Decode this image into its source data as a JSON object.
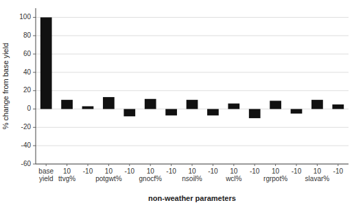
{
  "chart_data": {
    "type": "bar",
    "categories": [
      "base\nyield",
      "10\nttvg%",
      "-10",
      "10\npotgwt%",
      "-10",
      "10\ngnocf%",
      "-10",
      "10\nnsoil%",
      "-10",
      "10\nwcl%",
      "-10",
      "10\nrgrpot%",
      "-10",
      "10\nslavar%",
      "-10"
    ],
    "values": [
      100,
      10,
      3,
      13,
      -8,
      11,
      -7,
      10,
      -7,
      6,
      -10,
      9,
      -5,
      10,
      5
    ],
    "color": "#111111",
    "xlabel": "non-weather parameters",
    "ylabel": "% change from base yield",
    "ylim": [
      -60,
      110
    ],
    "yticks": [
      -60,
      -40,
      -20,
      0,
      20,
      40,
      60,
      80,
      100
    ],
    "grid": true
  }
}
